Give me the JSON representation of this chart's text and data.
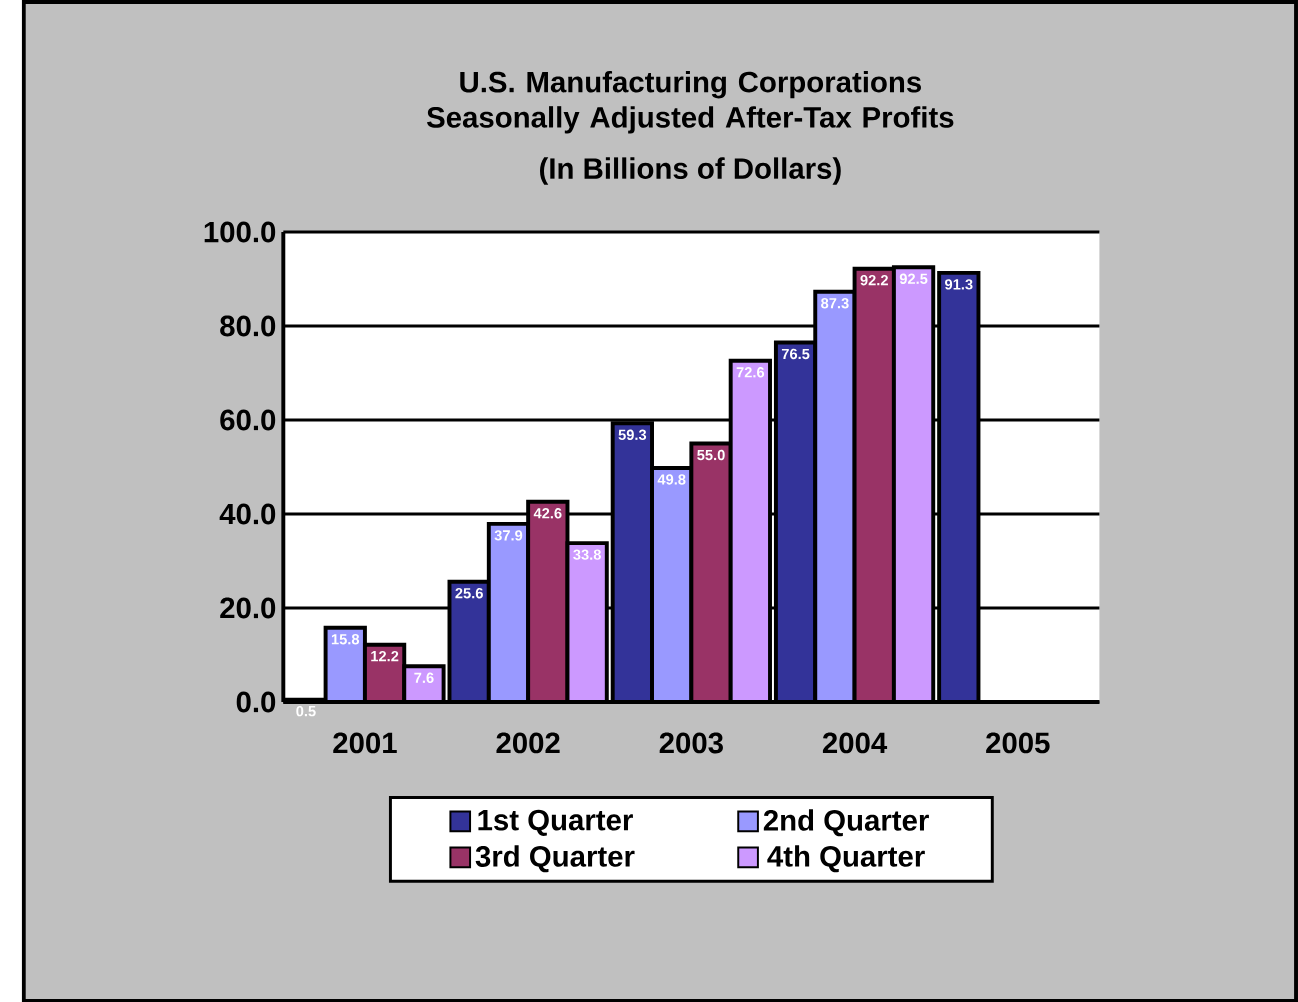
{
  "chart_data": {
    "type": "bar",
    "title": "U.S. Manufacturing Corporations Seasonally Adjusted After-Tax Profits",
    "subtitle": "(In Billions of Dollars)",
    "categories": [
      "2001",
      "2002",
      "2003",
      "2004",
      "2005"
    ],
    "series": [
      {
        "name": "1st Quarter",
        "color": "#333399",
        "values": [
          0.5,
          25.6,
          59.3,
          76.5,
          91.3
        ],
        "value_labels": [
          "0.5",
          "25.6",
          "59.3",
          "76.5",
          "91.3"
        ]
      },
      {
        "name": "2nd Quarter",
        "color": "#9999ff",
        "values": [
          15.8,
          37.9,
          49.8,
          87.3,
          null
        ],
        "value_labels": [
          "15.8",
          "37.9",
          "49.8",
          "87.3",
          null
        ]
      },
      {
        "name": "3rd Quarter",
        "color": "#993366",
        "values": [
          12.2,
          42.6,
          55.0,
          92.2,
          null
        ],
        "value_labels": [
          "12.2",
          "42.6",
          "55.0",
          "92.2",
          null
        ]
      },
      {
        "name": "4th Quarter",
        "color": "#cc99ff",
        "values": [
          7.6,
          33.8,
          72.6,
          92.5,
          null
        ],
        "value_labels": [
          "7.6",
          "33.8",
          "72.6",
          "92.5",
          null
        ]
      }
    ],
    "ylim": [
      0,
      100
    ],
    "yticks": [
      {
        "value": 0,
        "label": "0.0"
      },
      {
        "value": 20,
        "label": "20.0"
      },
      {
        "value": 40,
        "label": "40.0"
      },
      {
        "value": 60,
        "label": "60.0"
      },
      {
        "value": 80,
        "label": "80.0"
      },
      {
        "value": 100,
        "label": "100.0"
      }
    ],
    "grid": "y",
    "legend": "bottom"
  }
}
